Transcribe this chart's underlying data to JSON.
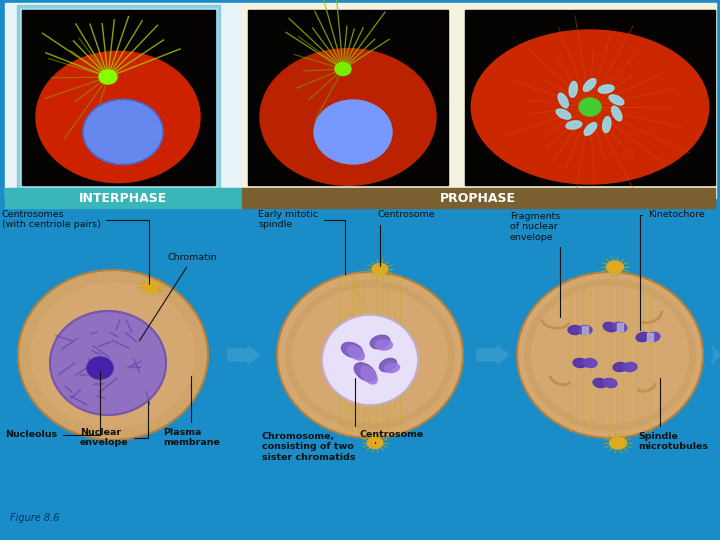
{
  "bg_color": "#1a8cc7",
  "top_panel_bg": "#e8f4f8",
  "top_panel_bg2": "#f5f2e0",
  "interphase_label_bg": "#3ab5b8",
  "prophase_label_bg": "#7a6030",
  "label_text_color": "#ffffff",
  "interphase_text": "INTERPHASE",
  "prophase_text": "PROPHASE",
  "figure_label": "Figure 8.6",
  "annotation_color": "#111111",
  "annotation_fontsize": 6.8,
  "label_fontsize": 9,
  "figure_label_fontsize": 7,
  "photo_border_color": "#88ccdd",
  "cell_outer_color": "#d4a870",
  "cell_outer_edge": "#c09050",
  "cell_inner_ring": "#c8b080",
  "nucleus1_color": "#9070c0",
  "nucleus1_edge": "#6644aa",
  "chromatin_color": "#7755bb",
  "nucleolus_color": "#4422aa",
  "nucleus2_color": "#e0ddf5",
  "nucleus2_edge": "#aaaacc",
  "chrom2_color": "#7755bb",
  "spindle_color": "#ccaa44",
  "centrosome_color": "#ddaa22",
  "annotations": {
    "centrosomes": "Centrosomes\n(with centriole pairs)",
    "chromatin": "Chromatin",
    "nucleolus": "Nucleolus",
    "nuclear_envelope": "Nuclear\nenvelope",
    "plasma_membrane": "Plasma\nmembrane",
    "early_spindle": "Early mitotic\nspindle",
    "centrosome2": "Centrosome",
    "chromosome": "Chromosome,\nconsisting of two\nsister chromatids",
    "centrosome3": "Centrosome",
    "fragments": "Fragments\nof nuclear\nenvelope",
    "kinetochore": "Kinetochore",
    "spindle_mt": "Spindle\nmicrotubules"
  },
  "arrow_color": "#3399cc",
  "photo1_border": "#88ccdd",
  "photo1_inner_border": "#aaddee"
}
